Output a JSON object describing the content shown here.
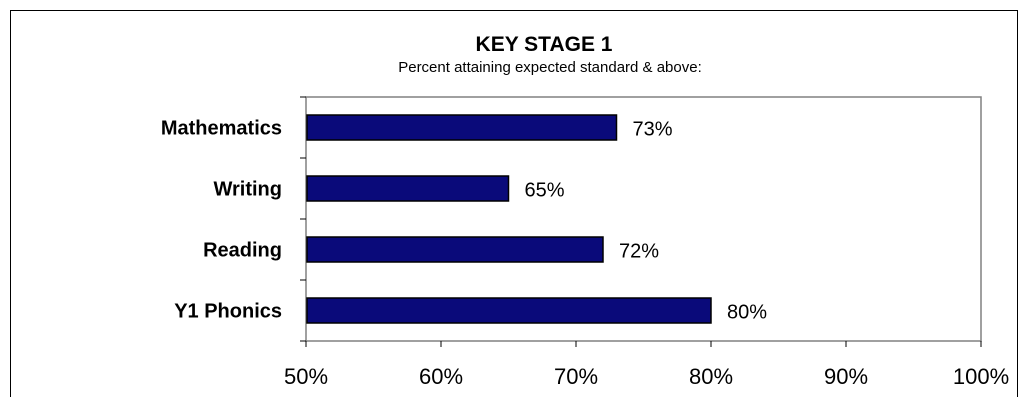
{
  "chart_data": {
    "type": "bar",
    "orientation": "horizontal",
    "title": "KEY STAGE 1",
    "subtitle": "Percent attaining expected standard & above:",
    "categories": [
      "Mathematics",
      "Writing",
      "Reading",
      "Y1 Phonics"
    ],
    "values": [
      73,
      65,
      72,
      80
    ],
    "data_labels": [
      "73%",
      "65%",
      "72%",
      "80%"
    ],
    "xlim": [
      50,
      100
    ],
    "xticks": [
      50,
      60,
      70,
      80,
      90,
      100
    ],
    "xtick_labels": [
      "50%",
      "60%",
      "70%",
      "80%",
      "90%",
      "100%"
    ],
    "grid": false,
    "colors": {
      "bar_fill": "#0a0a7a",
      "bar_stroke": "#000000",
      "plot_border": "#808080"
    }
  }
}
